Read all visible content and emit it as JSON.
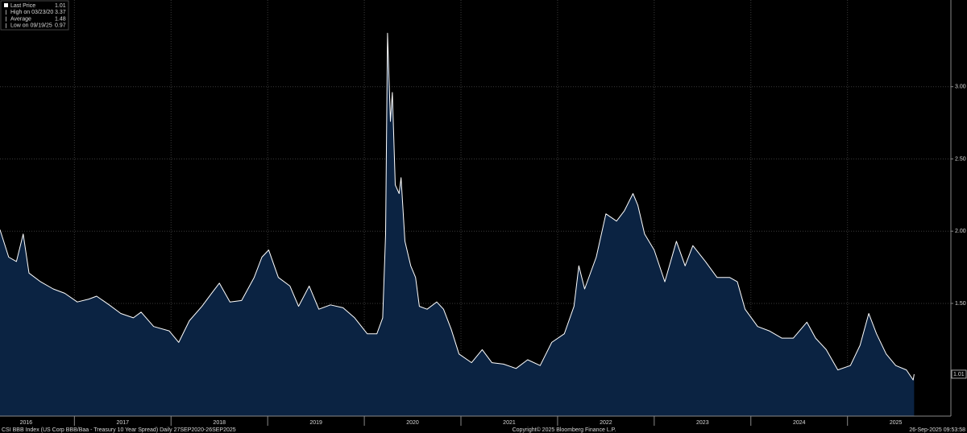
{
  "chart_data": {
    "type": "area",
    "color": "#ffffff",
    "fill": "#0b2342",
    "x": [
      2016.23,
      2016.32,
      2016.4,
      2016.47,
      2016.53,
      2016.65,
      2016.78,
      2016.9,
      2017.03,
      2017.15,
      2017.23,
      2017.36,
      2017.48,
      2017.61,
      2017.69,
      2017.82,
      2017.98,
      2018.08,
      2018.19,
      2018.32,
      2018.42,
      2018.5,
      2018.61,
      2018.73,
      2018.86,
      2018.94,
      2019.01,
      2019.11,
      2019.23,
      2019.32,
      2019.43,
      2019.53,
      2019.65,
      2019.78,
      2019.9,
      2020.03,
      2020.13,
      2020.19,
      2020.22,
      2020.24,
      2020.27,
      2020.29,
      2020.32,
      2020.36,
      2020.38,
      2020.42,
      2020.48,
      2020.53,
      2020.57,
      2020.65,
      2020.75,
      2020.82,
      2020.9,
      2020.98,
      2021.11,
      2021.22,
      2021.32,
      2021.44,
      2021.57,
      2021.69,
      2021.82,
      2021.94,
      2022.07,
      2022.17,
      2022.22,
      2022.28,
      2022.4,
      2022.5,
      2022.61,
      2022.69,
      2022.78,
      2022.83,
      2022.9,
      2023.0,
      2023.11,
      2023.23,
      2023.32,
      2023.4,
      2023.53,
      2023.65,
      2023.78,
      2023.86,
      2023.94,
      2024.07,
      2024.19,
      2024.32,
      2024.44,
      2024.58,
      2024.67,
      2024.78,
      2024.9,
      2025.03,
      2025.13,
      2025.22,
      2025.3,
      2025.4,
      2025.5,
      2025.61,
      2025.68,
      2025.69
    ],
    "values": [
      2.01,
      1.82,
      1.79,
      1.98,
      1.71,
      1.65,
      1.6,
      1.57,
      1.51,
      1.53,
      1.55,
      1.49,
      1.43,
      1.4,
      1.44,
      1.34,
      1.31,
      1.23,
      1.38,
      1.48,
      1.57,
      1.64,
      1.51,
      1.52,
      1.68,
      1.82,
      1.87,
      1.68,
      1.62,
      1.48,
      1.62,
      1.46,
      1.49,
      1.47,
      1.4,
      1.29,
      1.29,
      1.4,
      1.98,
      3.37,
      2.76,
      2.96,
      2.32,
      2.26,
      2.37,
      1.93,
      1.76,
      1.68,
      1.48,
      1.46,
      1.51,
      1.46,
      1.32,
      1.15,
      1.09,
      1.18,
      1.09,
      1.08,
      1.05,
      1.11,
      1.07,
      1.23,
      1.29,
      1.48,
      1.76,
      1.6,
      1.82,
      2.12,
      2.07,
      2.14,
      2.26,
      2.18,
      1.98,
      1.87,
      1.65,
      1.93,
      1.76,
      1.9,
      1.79,
      1.68,
      1.68,
      1.65,
      1.46,
      1.34,
      1.31,
      1.26,
      1.26,
      1.37,
      1.26,
      1.18,
      1.04,
      1.07,
      1.21,
      1.43,
      1.29,
      1.15,
      1.07,
      1.04,
      0.97,
      1.01
    ],
    "xlim": [
      2016.23,
      2026.07
    ],
    "ylim": [
      0.72,
      3.6
    ],
    "yticks": [
      {
        "value": 1.5,
        "label": "1.50"
      },
      {
        "value": 2,
        "label": "2.00"
      },
      {
        "value": 2.5,
        "label": "2.50"
      },
      {
        "value": 3,
        "label": "3.00"
      }
    ],
    "xticks": [
      {
        "value": 2016.5,
        "label": "2016"
      },
      {
        "value": 2017.5,
        "label": "2017"
      },
      {
        "value": 2018.5,
        "label": "2018"
      },
      {
        "value": 2019.5,
        "label": "2019"
      },
      {
        "value": 2020.5,
        "label": "2020"
      },
      {
        "value": 2021.5,
        "label": "2021"
      },
      {
        "value": 2022.5,
        "label": "2022"
      },
      {
        "value": 2023.5,
        "label": "2023"
      },
      {
        "value": 2024.5,
        "label": "2024"
      },
      {
        "value": 2025.5,
        "label": "2025"
      }
    ],
    "xgrid": [
      2017,
      2018,
      2019,
      2020,
      2021,
      2022,
      2023,
      2024,
      2025
    ],
    "grid": true,
    "stats": [
      {
        "label": "Last Price",
        "value": 1.01
      },
      {
        "label": "High on 03/23/20",
        "value": 3.37
      },
      {
        "label": "Average",
        "value": 1.48
      },
      {
        "label": "Low on 09/19/25",
        "value": 0.97
      }
    ],
    "footer": {
      "left": "CSI BBB Index (US Corp BBB/Baa - Treasury 10 Year Spread)  Daily 27SEP2020-26SEP2025",
      "center": "Copyright© 2025 Bloomberg Finance L.P.",
      "right": "26-Sep-2025 09:53:58"
    }
  }
}
